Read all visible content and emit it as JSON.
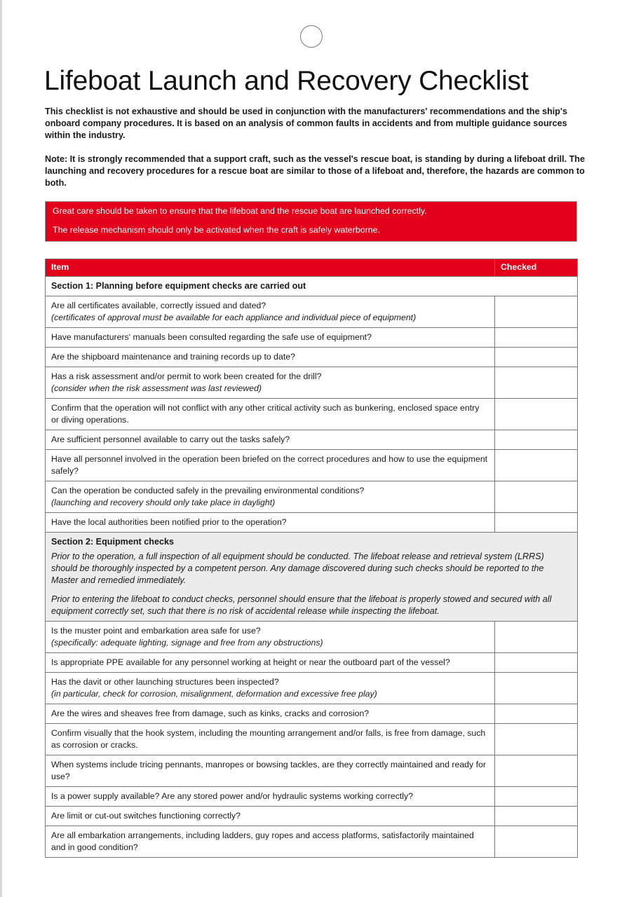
{
  "title": "Lifeboat Launch and Recovery Checklist",
  "intro": "This checklist is not exhaustive and should be used in conjunction with the manufacturers' recommendations and the ship's onboard company procedures. It is based on an analysis of common faults in accidents and from multiple guidance sources within the industry.",
  "note": "Note: It is strongly recommended that a support craft, such as the vessel's rescue boat, is standing by during a lifeboat drill. The launching and recovery procedures for a rescue boat are similar to those of a lifeboat and, therefore, the hazards are common to both.",
  "warning": {
    "line1": "Great care should be taken to ensure that the lifeboat and the rescue boat are launched correctly.",
    "line2": "The release mechanism should only be activated when the craft is safely waterborne.",
    "color": "#e2001a"
  },
  "table": {
    "headers": {
      "item": "Item",
      "checked": "Checked"
    },
    "section1": {
      "title": "Section 1: Planning before equipment checks are carried out",
      "rows": [
        {
          "text": "Are all certificates available, correctly issued and dated?",
          "note": "(certificates of approval must be available for each appliance and individual piece of equipment)"
        },
        {
          "text": "Have manufacturers' manuals been consulted regarding the safe use of equipment?"
        },
        {
          "text": "Are the shipboard maintenance and training records up to date?"
        },
        {
          "text": "Has a risk assessment and/or permit to work been created for the drill?",
          "note": "(consider when the risk assessment was last reviewed)"
        },
        {
          "text": "Confirm that the operation will not conflict with any other critical activity such as bunkering, enclosed space entry or diving operations."
        },
        {
          "text": "Are sufficient personnel available to carry out the tasks safely?"
        },
        {
          "text": "Have all personnel involved in the operation been briefed on the correct procedures and how to use the equipment safely?"
        },
        {
          "text": "Can the operation be conducted safely in the prevailing environmental conditions?",
          "note": "(launching and recovery should only take place in daylight)"
        },
        {
          "text": "Have the local authorities been notified prior to the operation?"
        }
      ]
    },
    "section2": {
      "title": "Section 2: Equipment checks",
      "para1": "Prior to the operation, a full inspection of all equipment should be conducted. The lifeboat release and retrieval system (LRRS) should be thoroughly inspected by a competent person. Any damage discovered during such checks should be reported to the Master and remedied immediately.",
      "para2": "Prior to entering the lifeboat to conduct checks, personnel should ensure that the lifeboat is properly stowed and secured with all equipment correctly set, such that there is no risk of accidental release while inspecting the lifeboat.",
      "rows": [
        {
          "text": "Is the muster point and embarkation area safe for use?",
          "note": "(specifically: adequate lighting, signage and free from any obstructions)"
        },
        {
          "text": "Is appropriate PPE available for any personnel working at height or near the outboard part of the vessel?"
        },
        {
          "text": "Has the davit or other launching structures been inspected?",
          "note": "(in particular, check for corrosion, misalignment, deformation and excessive free play)"
        },
        {
          "text": "Are the wires and sheaves free from damage, such as kinks, cracks and corrosion?"
        },
        {
          "text": "Confirm visually that the hook system, including the mounting arrangement and/or falls, is free from damage, such as corrosion or cracks."
        },
        {
          "text": "When systems include tricing pennants, manropes or bowsing tackles, are they correctly maintained and ready for use?"
        },
        {
          "text": "Is a power supply available? Are any stored power and/or hydraulic systems working correctly?"
        },
        {
          "text": "Are limit or cut-out switches functioning correctly?"
        },
        {
          "text": "Are all embarkation arrangements, including ladders, guy ropes and access platforms, satisfactorily maintained and in good condition?"
        }
      ]
    }
  }
}
